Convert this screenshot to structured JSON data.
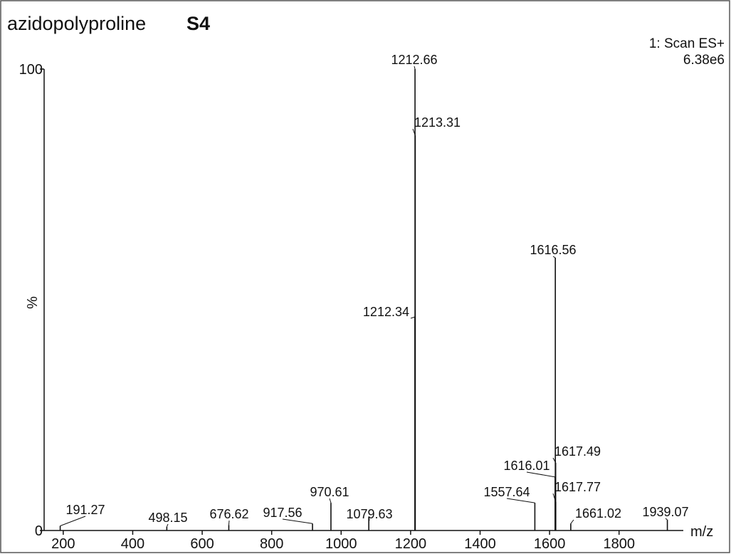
{
  "chart_data": {
    "type": "spectrum",
    "title": "azidopolyproline",
    "title_suffix": "S4",
    "scan_label": "1: Scan ES+",
    "intensity_label": "6.38e6",
    "ylabel": "%",
    "xlabel": "m/z",
    "xlim": [
      145,
      1985
    ],
    "xticks": [
      200,
      400,
      600,
      800,
      1000,
      1200,
      1400,
      1600,
      1800
    ],
    "ylim": [
      0,
      100
    ],
    "yticks": [
      0,
      100
    ],
    "color": "#111111",
    "x": [
      191.27,
      498.15,
      676.62,
      917.56,
      970.61,
      1079.63,
      1212.34,
      1212.66,
      1213.31,
      1616.56,
      1616.01,
      1617.49,
      1617.77,
      1557.64,
      1661.02,
      1939.07
    ],
    "values": [
      1.0,
      0.8,
      1.2,
      1.5,
      6.0,
      3.0,
      46.3,
      100,
      85.6,
      59.1,
      11.6,
      14.7,
      6.2,
      6.0,
      1.5,
      2.3
    ]
  }
}
